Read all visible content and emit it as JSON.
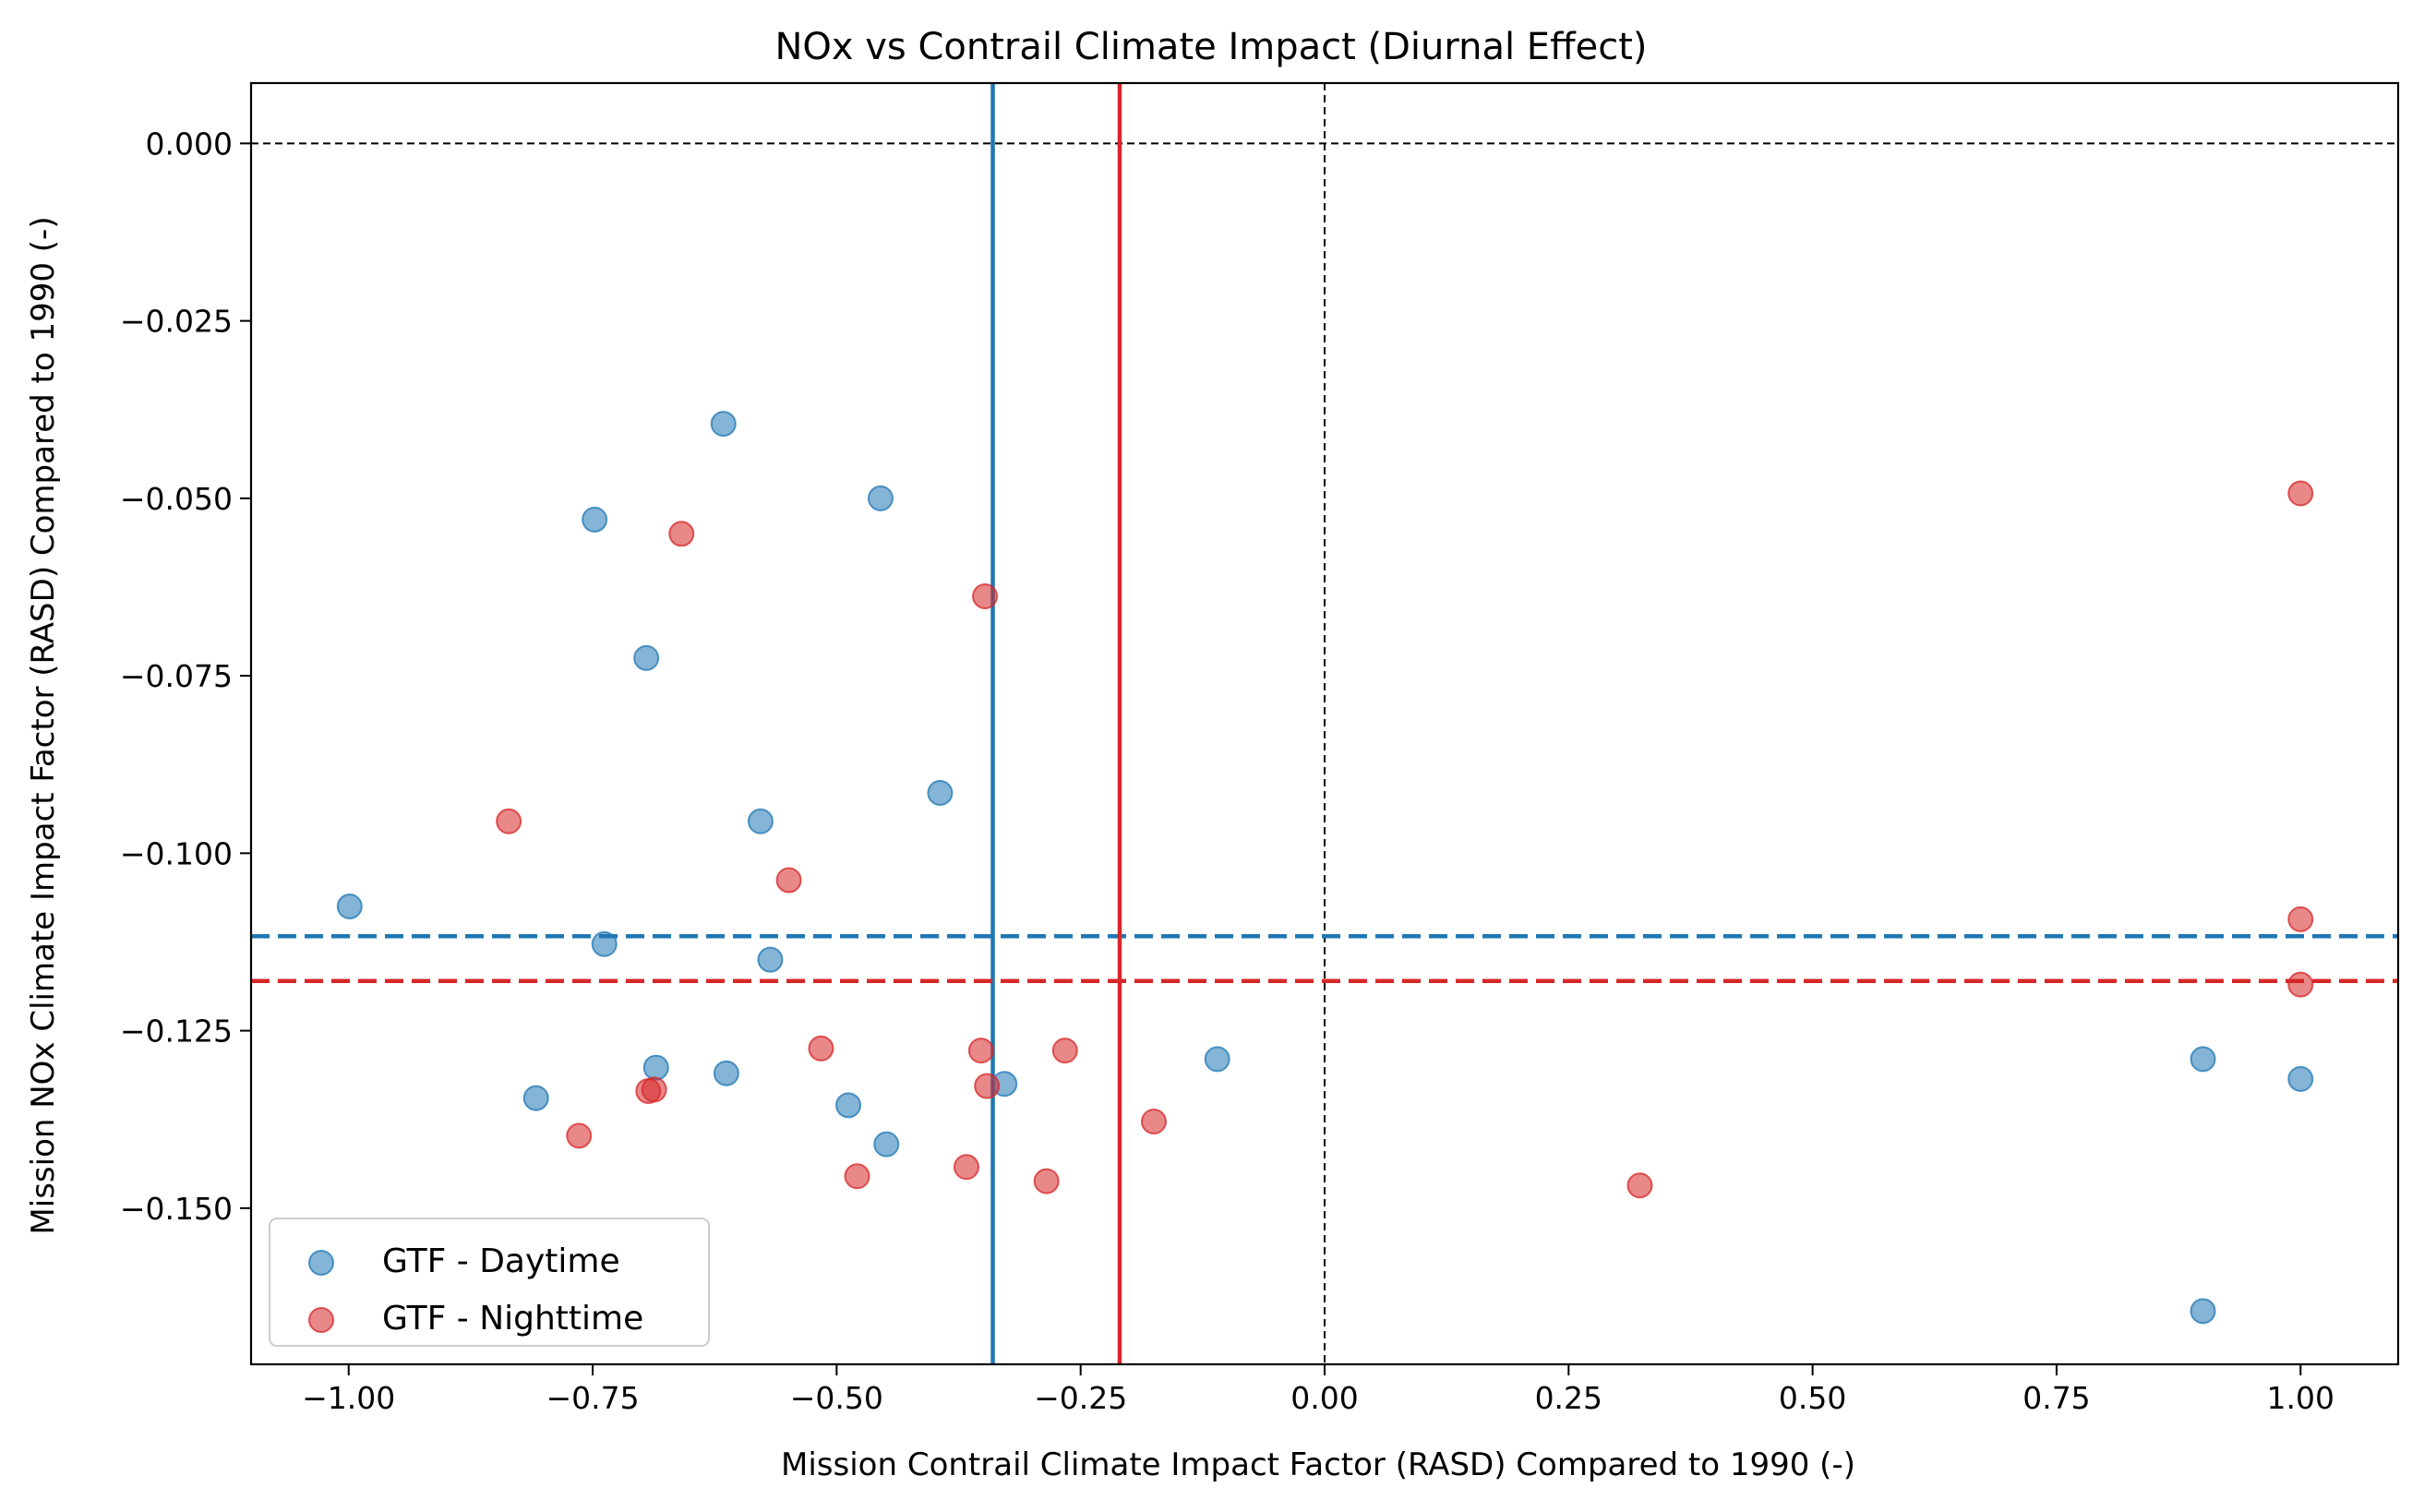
{
  "chart_data": {
    "type": "scatter",
    "title": "NOx vs Contrail Climate Impact (Diurnal Effect)",
    "xlabel": "Mission Contrail Climate Impact Factor (RASD) Compared to 1990 (-)",
    "ylabel": "Mission NOx Climate Impact Factor (RASD) Compared to 1990 (-)",
    "xlim": [
      -1.1,
      1.1
    ],
    "ylim": [
      -0.172,
      0.0085
    ],
    "xticks": [
      -1.0,
      -0.75,
      -0.5,
      -0.25,
      0.0,
      0.25,
      0.5,
      0.75,
      1.0
    ],
    "xtick_labels": [
      "−1.00",
      "−0.75",
      "−0.50",
      "−0.25",
      "0.00",
      "0.25",
      "0.50",
      "0.75",
      "1.00"
    ],
    "yticks": [
      0.0,
      -0.025,
      -0.05,
      -0.075,
      -0.1,
      -0.125,
      -0.15
    ],
    "ytick_labels": [
      "0.000",
      "−0.025",
      "−0.050",
      "−0.075",
      "−0.100",
      "−0.125",
      "−0.150"
    ],
    "grid": false,
    "legend_position": "lower-left",
    "series": [
      {
        "name": "GTF - Daytime",
        "color": "#1f77b4",
        "points": [
          [
            -0.616,
            -0.0395
          ],
          [
            -0.455,
            -0.05
          ],
          [
            -0.748,
            -0.053
          ],
          [
            -0.695,
            -0.0725
          ],
          [
            -0.394,
            -0.0915
          ],
          [
            -0.578,
            -0.0955
          ],
          [
            -0.999,
            -0.1075
          ],
          [
            -0.738,
            -0.1128
          ],
          [
            -0.568,
            -0.115
          ],
          [
            -0.685,
            -0.1302
          ],
          [
            -0.613,
            -0.131
          ],
          [
            -0.808,
            -0.1345
          ],
          [
            -0.488,
            -0.1355
          ],
          [
            -0.449,
            -0.141
          ],
          [
            -0.328,
            -0.1325
          ],
          [
            -0.11,
            -0.129
          ],
          [
            0.9,
            -0.129
          ],
          [
            1.0,
            -0.1318
          ],
          [
            0.9,
            -0.1645
          ]
        ]
      },
      {
        "name": "GTF - Nighttime",
        "color": "#d62728",
        "points": [
          [
            -0.659,
            -0.055
          ],
          [
            -0.348,
            -0.0638
          ],
          [
            -0.836,
            -0.0955
          ],
          [
            -0.549,
            -0.1038
          ],
          [
            -0.516,
            -0.1275
          ],
          [
            -0.352,
            -0.1278
          ],
          [
            -0.266,
            -0.1278
          ],
          [
            -0.346,
            -0.1328
          ],
          [
            -0.693,
            -0.1335
          ],
          [
            -0.687,
            -0.1333
          ],
          [
            -0.764,
            -0.1398
          ],
          [
            -0.175,
            -0.1378
          ],
          [
            -0.367,
            -0.1442
          ],
          [
            -0.479,
            -0.1455
          ],
          [
            -0.285,
            -0.1462
          ],
          [
            0.323,
            -0.1468
          ],
          [
            1.0,
            -0.0493
          ],
          [
            1.0,
            -0.1093
          ],
          [
            1.0,
            -0.1185
          ]
        ]
      }
    ],
    "mean_lines": [
      {
        "series": "GTF - Daytime",
        "color": "#1f77b4",
        "x": -0.34,
        "y": -0.1117
      },
      {
        "series": "GTF - Nighttime",
        "color": "#d62728",
        "x": -0.21,
        "y": -0.118
      }
    ],
    "reference_lines": {
      "x": 0.0,
      "y": 0.0,
      "color": "#000000",
      "style": "dashed"
    }
  }
}
